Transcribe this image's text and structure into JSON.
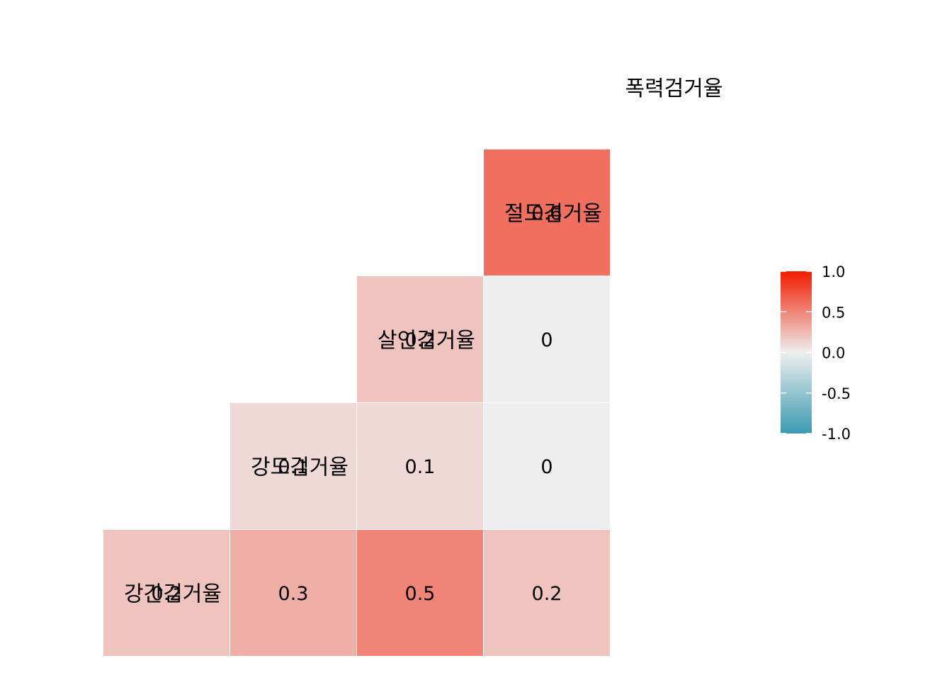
{
  "chart_data": {
    "type": "heatmap",
    "title": "",
    "variables": [
      "강간검거율",
      "강도검거율",
      "살인검거율",
      "절도검거율",
      "폭력검거율"
    ],
    "cells": [
      {
        "row": "강간검거율",
        "col": "강간검거율",
        "value": 0.2
      },
      {
        "row": "강간검거율",
        "col": "강도검거율",
        "value": 0.3
      },
      {
        "row": "강간검거율",
        "col": "살인검거율",
        "value": 0.5
      },
      {
        "row": "강간검거율",
        "col": "절도검거율",
        "value": 0.2
      },
      {
        "row": "강도검거율",
        "col": "강도검거율",
        "value": 0.1
      },
      {
        "row": "강도검거율",
        "col": "살인검거율",
        "value": 0.1
      },
      {
        "row": "강도검거율",
        "col": "절도검거율",
        "value": 0
      },
      {
        "row": "살인검거율",
        "col": "살인검거율",
        "value": 0.2
      },
      {
        "row": "살인검거율",
        "col": "절도검거율",
        "value": 0
      },
      {
        "row": "절도검거율",
        "col": "절도검거율",
        "value": 0.6
      }
    ],
    "legend": {
      "placement": "right",
      "range": [
        -1.0,
        1.0
      ],
      "ticks": [
        "1.0",
        "0.5",
        "0.0",
        "-0.5",
        "-1.0"
      ],
      "colors": {
        "low": "#3A9AB2",
        "mid": "#EEEEEE",
        "high": "#F11B00"
      }
    }
  }
}
